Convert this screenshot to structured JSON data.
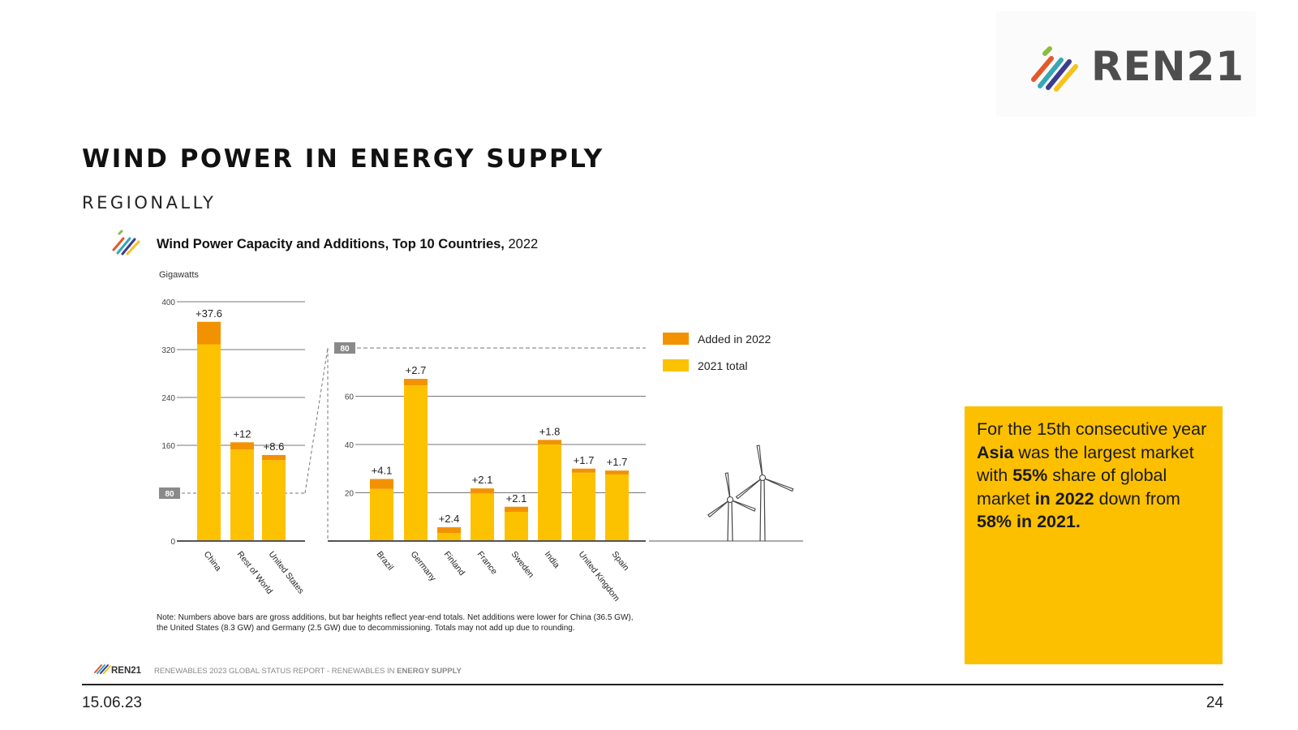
{
  "header": {
    "logo_text": "REN21",
    "title": "WIND POWER IN ENERGY SUPPLY",
    "subtitle": "REGIONALLY"
  },
  "chart_data": {
    "type": "bar",
    "title_bold": "Wind Power Capacity and Additions, Top 10 Countries,",
    "title_year": "2022",
    "unit_label": "Gigawatts",
    "legend": [
      "Added in 2022",
      "2021 total"
    ],
    "colors": {
      "added": "#f39200",
      "total": "#fcc200",
      "axis": "#555555",
      "break_box": "#8a8a8a"
    },
    "panels": [
      {
        "categories": [
          "China",
          "Rest of World",
          "United States"
        ],
        "total_2021": [
          328.8,
          153,
          135.2
        ],
        "added_2022": [
          37.6,
          12,
          8.6
        ],
        "labels": [
          "+37.6",
          "+12",
          "+8.6"
        ],
        "ylim": [
          0,
          400
        ],
        "yticks": [
          "0",
          "80",
          "160",
          "240",
          "320",
          "400"
        ]
      },
      {
        "categories": [
          "Brazil",
          "Germany",
          "Finland",
          "France",
          "Sweden",
          "India",
          "United Kingdom",
          "Spain"
        ],
        "total_2021": [
          21.6,
          64.5,
          3.3,
          19.7,
          12.1,
          40.1,
          28.3,
          27.5
        ],
        "added_2022": [
          4.1,
          2.7,
          2.4,
          2.1,
          2.1,
          1.8,
          1.7,
          1.7
        ],
        "labels": [
          "+4.1",
          "+2.7",
          "+2.4",
          "+2.1",
          "+2.1",
          "+1.8",
          "+1.7",
          "+1.7"
        ],
        "ylim": [
          0,
          80
        ],
        "yticks": [
          "20",
          "40",
          "60",
          "80"
        ]
      }
    ],
    "note_line1": "Note: Numbers above bars are gross additions, but bar heights reflect year-end totals. Net additions were lower for China (36.5 GW),",
    "note_line2": "the United States (8.3 GW) and Germany (2.5 GW) due to decommissioning. Totals may not add up due to rounding.",
    "source_logo": "REN21",
    "source_text": "RENEWABLES 2023 GLOBAL STATUS REPORT - RENEWABLES IN",
    "source_bold": "ENERGY SUPPLY"
  },
  "callout": {
    "t1": "For the 15th consecutive year ",
    "b1": "Asia",
    "t2": " was the largest market with ",
    "b2": "55%",
    "t3": " share of global market ",
    "b3": "in 2022",
    "t4": " down from ",
    "b4": "58% in 2021."
  },
  "footer": {
    "date": "15.06.23",
    "page": "24"
  }
}
